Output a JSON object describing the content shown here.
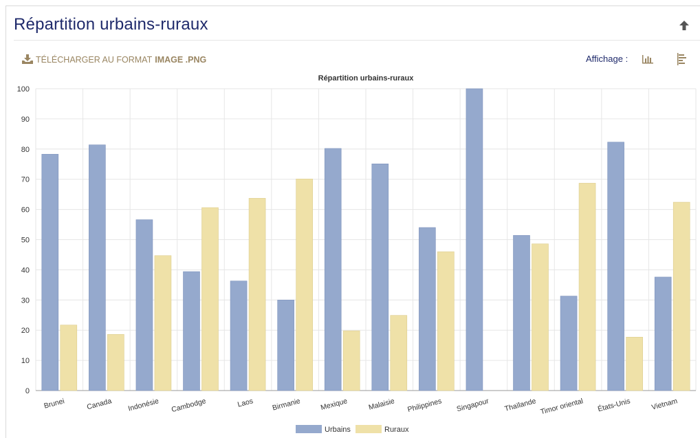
{
  "header": {
    "title": "Répartition urbains-ruraux",
    "download_label": "Télécharger au format",
    "download_format": "image .png",
    "display_label": "Affichage :"
  },
  "icons": {
    "up": "arrow-up-icon",
    "download": "download-icon",
    "bar_view": "bar-chart-icon",
    "horizontal_view": "horizontal-bar-chart-icon"
  },
  "colors": {
    "title": "#1f2a6b",
    "accent": "#9a8662",
    "urbains": "#95a9cd",
    "ruraux": "#efe1a8"
  },
  "chart_data": {
    "type": "bar",
    "title": "Répartition urbains-ruraux",
    "xlabel": "",
    "ylabel": "",
    "ylim": [
      0,
      100
    ],
    "yticks": [
      0,
      10,
      20,
      30,
      40,
      50,
      60,
      70,
      80,
      90,
      100
    ],
    "grid": true,
    "legend": "bottom-center",
    "categories": [
      "Brunei",
      "Canada",
      "Indonésie",
      "Cambodge",
      "Laos",
      "Birmanie",
      "Mexique",
      "Malaisie",
      "Philippines",
      "Singapour",
      "Thaïlande",
      "Timor oriental",
      "États-Unis",
      "Vietnam"
    ],
    "series": [
      {
        "name": "Urbains",
        "color": "#95a9cd",
        "values": [
          78.3,
          81.4,
          56.6,
          39.4,
          36.3,
          30.0,
          80.2,
          75.1,
          54.0,
          100,
          51.4,
          31.3,
          82.3,
          37.6
        ]
      },
      {
        "name": "Ruraux",
        "color": "#efe1a8",
        "values": [
          21.7,
          18.6,
          44.7,
          60.6,
          63.7,
          70.1,
          19.8,
          24.9,
          46.0,
          0,
          48.6,
          68.7,
          17.7,
          62.4
        ]
      }
    ]
  }
}
